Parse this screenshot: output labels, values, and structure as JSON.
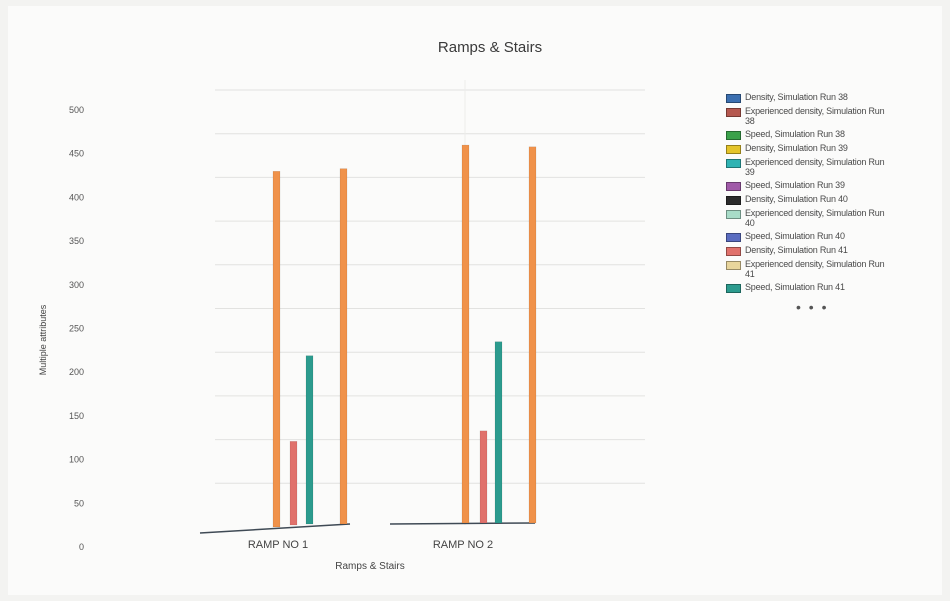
{
  "chart_data": {
    "type": "bar",
    "title": "Ramps & Stairs",
    "xlabel": "Ramps & Stairs",
    "ylabel": "Multiple attributes",
    "ylim": [
      0,
      500
    ],
    "yticks": [
      0,
      50,
      100,
      150,
      200,
      250,
      300,
      350,
      400,
      450,
      500
    ],
    "categories": [
      "RAMP NO 1",
      "RAMP NO 2"
    ],
    "grid": true,
    "legend_position": "right",
    "legend_more": "• • •",
    "bars": [
      {
        "category": "RAMP NO 1",
        "name": "Experienced density",
        "value": 407,
        "color": "#f0924a"
      },
      {
        "category": "RAMP NO 1",
        "name": "Density",
        "value": 98,
        "color": "#e0716b"
      },
      {
        "category": "RAMP NO 1",
        "name": "Speed",
        "value": 196,
        "color": "#2c9b8e"
      },
      {
        "category": "RAMP NO 1",
        "name": "Experienced density",
        "value": 410,
        "color": "#f0924a"
      },
      {
        "category": "RAMP NO 2",
        "name": "Experienced density",
        "value": 437,
        "color": "#f0924a"
      },
      {
        "category": "RAMP NO 2",
        "name": "Density",
        "value": 110,
        "color": "#e0716b"
      },
      {
        "category": "RAMP NO 2",
        "name": "Speed",
        "value": 212,
        "color": "#2c9b8e"
      },
      {
        "category": "RAMP NO 2",
        "name": "Experienced density",
        "value": 435,
        "color": "#f0924a"
      }
    ],
    "legend": [
      {
        "label": "Density, Simulation Run 38",
        "color": "#3b6fb0"
      },
      {
        "label": "Experienced density, Simulation Run 38",
        "color": "#b5584f"
      },
      {
        "label": "Speed, Simulation Run 38",
        "color": "#3aa14a"
      },
      {
        "label": "Density, Simulation Run 39",
        "color": "#e4c42a"
      },
      {
        "label": "Experienced density, Simulation Run 39",
        "color": "#2fb3b3"
      },
      {
        "label": "Speed, Simulation Run 39",
        "color": "#a05aa8"
      },
      {
        "label": "Density, Simulation Run 40",
        "color": "#2b2b2b"
      },
      {
        "label": "Experienced density, Simulation Run 40",
        "color": "#a8dcc8"
      },
      {
        "label": "Speed, Simulation Run 40",
        "color": "#5a6cc0"
      },
      {
        "label": "Density, Simulation Run 41",
        "color": "#e0716b"
      },
      {
        "label": "Experienced density, Simulation Run 41",
        "color": "#e8d59c"
      },
      {
        "label": "Speed, Simulation Run 41",
        "color": "#2c9b8e"
      }
    ]
  }
}
